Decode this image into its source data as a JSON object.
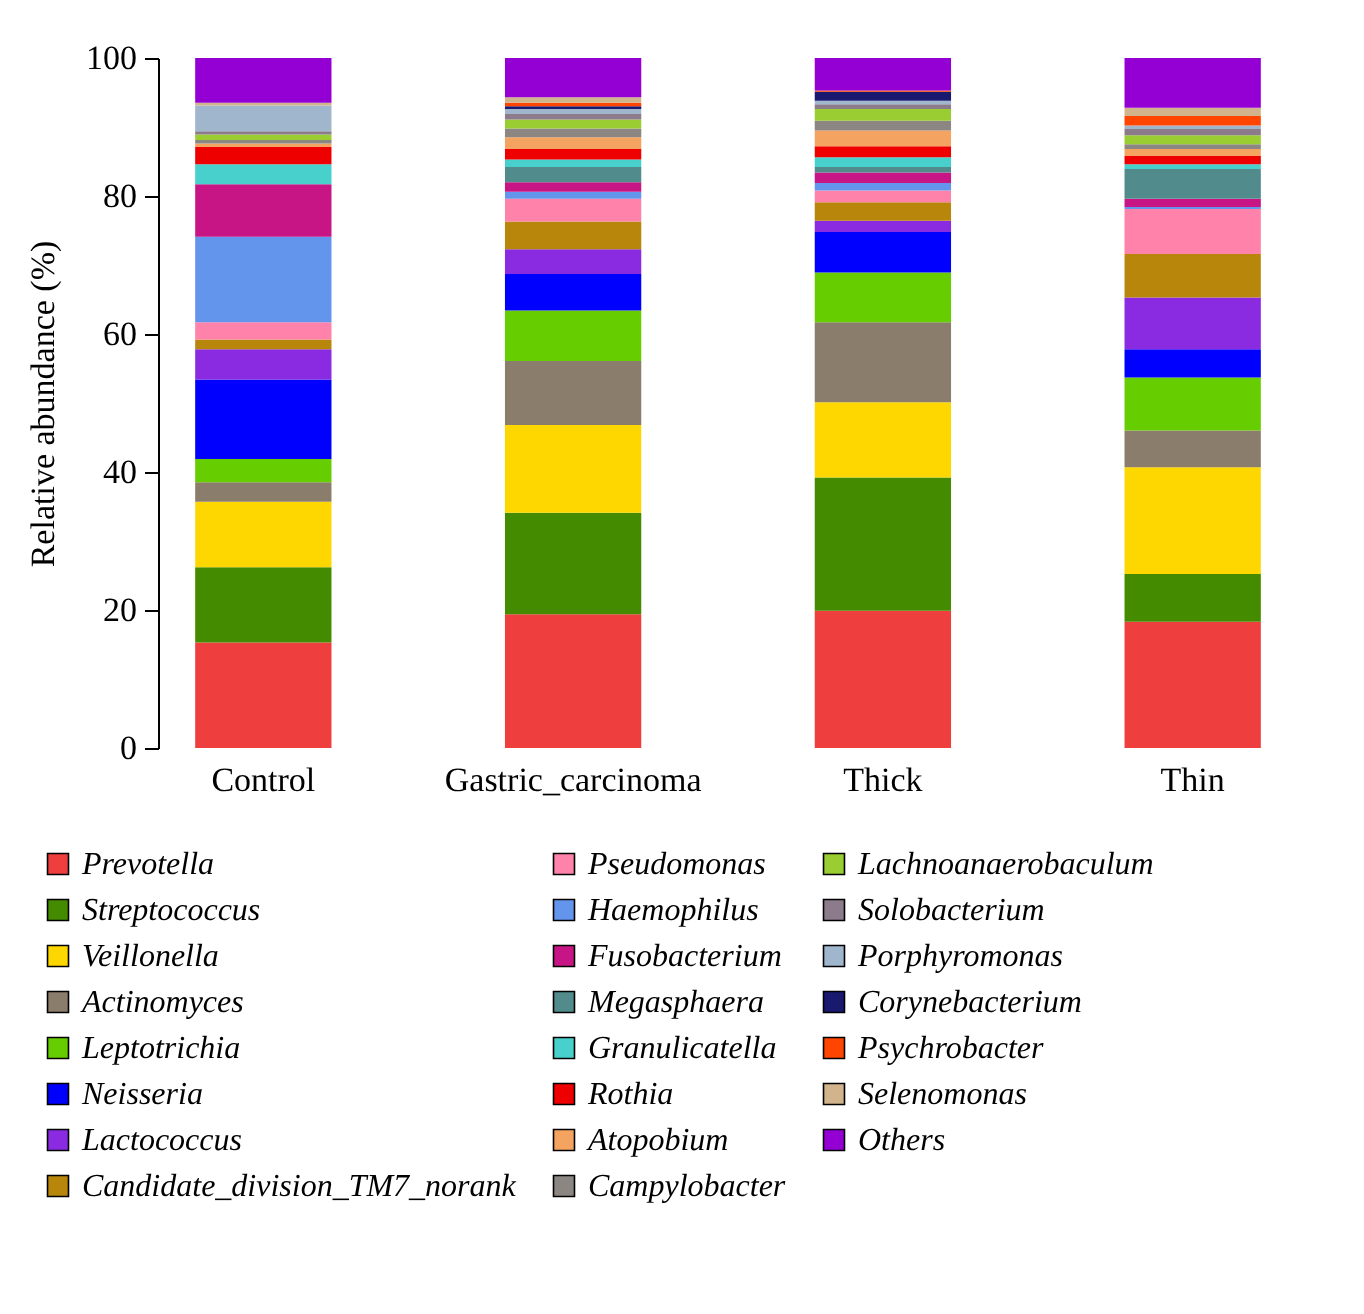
{
  "chart_data": {
    "type": "bar",
    "stacked": true,
    "ylabel": "Relative abundance (%)",
    "categories": [
      "Control",
      "Gastric_carcinoma",
      "Thick",
      "Thin"
    ],
    "ylim": [
      0,
      100
    ],
    "yticks": [
      0,
      20,
      40,
      60,
      80,
      100
    ],
    "grid": false,
    "legend": "bottom",
    "series": [
      {
        "name": "Prevotella",
        "color": "#ee3e3e",
        "values": [
          15.3,
          19.4,
          19.9,
          18.3
        ]
      },
      {
        "name": "Streptococcus",
        "color": "#458b00",
        "values": [
          10.9,
          14.7,
          19.3,
          6.9
        ]
      },
      {
        "name": "Veillonella",
        "color": "#ffd700",
        "values": [
          9.5,
          12.7,
          10.9,
          15.5
        ]
      },
      {
        "name": "Actinomyces",
        "color": "#8b7d6b",
        "values": [
          2.8,
          9.3,
          11.6,
          5.3
        ]
      },
      {
        "name": "Leptotrichia",
        "color": "#66cd00",
        "values": [
          3.4,
          7.3,
          7.2,
          7.7
        ]
      },
      {
        "name": "Neisseria",
        "color": "#0000ff",
        "values": [
          11.5,
          5.3,
          5.9,
          4.1
        ]
      },
      {
        "name": "Lactococcus",
        "color": "#8a2be2",
        "values": [
          4.4,
          3.6,
          1.6,
          7.5
        ]
      },
      {
        "name": "Candidate_division_TM7_norank",
        "color": "#b8860b",
        "values": [
          1.4,
          4.0,
          2.7,
          6.3
        ]
      },
      {
        "name": "Pseudomonas",
        "color": "#ff82ab",
        "values": [
          2.5,
          3.3,
          1.7,
          6.5
        ]
      },
      {
        "name": "Haemophilus",
        "color": "#6495ed",
        "values": [
          12.4,
          1.0,
          1.1,
          0.3
        ]
      },
      {
        "name": "Fusobacterium",
        "color": "#c71585",
        "values": [
          7.6,
          1.4,
          1.5,
          1.2
        ]
      },
      {
        "name": "Megasphaera",
        "color": "#528b8b",
        "values": [
          0,
          2.2,
          0.8,
          4.3
        ]
      },
      {
        "name": "Granulicatella",
        "color": "#48d1cc",
        "values": [
          2.9,
          1.1,
          1.4,
          0.7
        ]
      },
      {
        "name": "Rothia",
        "color": "#ee0000",
        "values": [
          2.5,
          1.5,
          1.6,
          1.2
        ]
      },
      {
        "name": "Atopobium",
        "color": "#f4a460",
        "values": [
          0.5,
          1.7,
          2.3,
          1.0
        ]
      },
      {
        "name": "Campylobacter",
        "color": "#8b8682",
        "values": [
          0.5,
          1.3,
          1.4,
          0.7
        ]
      },
      {
        "name": "Lachnoanaerobaculum",
        "color": "#9acd32",
        "values": [
          0.8,
          1.3,
          1.7,
          1.3
        ]
      },
      {
        "name": "Solobacterium",
        "color": "#8b7b8b",
        "values": [
          0.5,
          0.8,
          0.7,
          0.9
        ]
      },
      {
        "name": "Porphyromonas",
        "color": "#9fb6cd",
        "values": [
          3.7,
          0.7,
          0.5,
          0.5
        ]
      },
      {
        "name": "Corynebacterium",
        "color": "#191970",
        "values": [
          0,
          0.4,
          1.3,
          0
        ]
      },
      {
        "name": "Psychrobacter",
        "color": "#ff4500",
        "values": [
          0,
          0.5,
          0.2,
          1.4
        ]
      },
      {
        "name": "Selenomonas",
        "color": "#d2b48c",
        "values": [
          0.4,
          0.8,
          0,
          1.2
        ]
      },
      {
        "name": "Others",
        "color": "#9400d3",
        "values": [
          6.5,
          5.7,
          4.7,
          7.2
        ]
      }
    ]
  }
}
